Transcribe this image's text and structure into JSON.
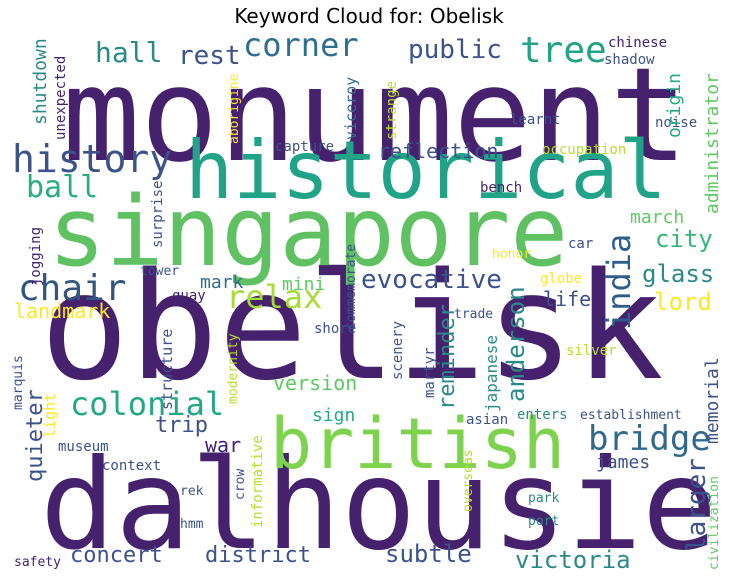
{
  "title": "Keyword Cloud for: Obelisk",
  "words": [
    {
      "text": "obelisk",
      "color": "#45216e"
    },
    {
      "text": "monument",
      "color": "#45216e"
    },
    {
      "text": "singapore",
      "color": "#5fc161"
    },
    {
      "text": "dalhousie",
      "color": "#45216e"
    },
    {
      "text": "historical",
      "color": "#20a386"
    },
    {
      "text": "british",
      "color": "#7ed34e"
    },
    {
      "text": "history",
      "color": "#3b528b"
    },
    {
      "text": "corner",
      "color": "#2e6e8e"
    },
    {
      "text": "tree",
      "color": "#20a386"
    },
    {
      "text": "hall",
      "color": "#2a8a8a"
    },
    {
      "text": "rest",
      "color": "#3b528b"
    },
    {
      "text": "public",
      "color": "#3b528b"
    },
    {
      "text": "ball",
      "color": "#28ae80"
    },
    {
      "text": "chair",
      "color": "#33567f"
    },
    {
      "text": "relax",
      "color": "#a8db34"
    },
    {
      "text": "evocative",
      "color": "#3b528b"
    },
    {
      "text": "india",
      "color": "#2f5d8a"
    },
    {
      "text": "colonial",
      "color": "#22a884"
    },
    {
      "text": "bridge",
      "color": "#31688e"
    },
    {
      "text": "victoria",
      "color": "#2a8a8a"
    },
    {
      "text": "concert",
      "color": "#3b528b"
    },
    {
      "text": "district",
      "color": "#3b528b"
    },
    {
      "text": "subtle",
      "color": "#3b528b"
    },
    {
      "text": "larger",
      "color": "#3b528b"
    },
    {
      "text": "anderson",
      "color": "#2a8a8a"
    },
    {
      "text": "reminder",
      "color": "#2a8a8a"
    },
    {
      "text": "quieter",
      "color": "#3b528b"
    },
    {
      "text": "landmark",
      "color": "#fde725"
    },
    {
      "text": "glass",
      "color": "#2a8a8a"
    },
    {
      "text": "lord",
      "color": "#fde725"
    },
    {
      "text": "city",
      "color": "#35b779"
    },
    {
      "text": "trip",
      "color": "#3b528b"
    },
    {
      "text": "war",
      "color": "#45216e"
    },
    {
      "text": "version",
      "color": "#5ec962"
    },
    {
      "text": "reflection",
      "color": "#3b528b"
    },
    {
      "text": "memorial",
      "color": "#3b528b"
    },
    {
      "text": "japanese",
      "color": "#2a8a8a"
    },
    {
      "text": "james",
      "color": "#3b528b"
    },
    {
      "text": "life",
      "color": "#3b528b"
    },
    {
      "text": "march",
      "color": "#5ec962"
    },
    {
      "text": "administrator",
      "color": "#5ec962"
    },
    {
      "text": "origin",
      "color": "#22a884"
    },
    {
      "text": "occupation",
      "color": "#b5de2b"
    },
    {
      "text": "shutdown",
      "color": "#2a8a8a"
    },
    {
      "text": "unexpected",
      "color": "#45216e"
    },
    {
      "text": "aborigine",
      "color": "#fde725"
    },
    {
      "text": "viceroy",
      "color": "#2e6e8e"
    },
    {
      "text": "strange",
      "color": "#b5de2b"
    },
    {
      "text": "learnt",
      "color": "#3b528b"
    },
    {
      "text": "capture",
      "color": "#3b528b"
    },
    {
      "text": "chinese",
      "color": "#45216e"
    },
    {
      "text": "shadow",
      "color": "#3b528b"
    },
    {
      "text": "noise",
      "color": "#3b528b"
    },
    {
      "text": "bench",
      "color": "#45216e"
    },
    {
      "text": "surprise",
      "color": "#3b528b"
    },
    {
      "text": "jogging",
      "color": "#45216e"
    },
    {
      "text": "commemorate",
      "color": "#3b528b"
    },
    {
      "text": "honor",
      "color": "#fde725"
    },
    {
      "text": "car",
      "color": "#3b528b"
    },
    {
      "text": "globe",
      "color": "#fde725"
    },
    {
      "text": "tower",
      "color": "#3b528b"
    },
    {
      "text": "mark",
      "color": "#2e6e8e"
    },
    {
      "text": "mini",
      "color": "#5ec962"
    },
    {
      "text": "quay",
      "color": "#45216e"
    },
    {
      "text": "trade",
      "color": "#3b528b"
    },
    {
      "text": "shore",
      "color": "#3b528b"
    },
    {
      "text": "scenery",
      "color": "#3b528b"
    },
    {
      "text": "martyr",
      "color": "#3b528b"
    },
    {
      "text": "silver",
      "color": "#b5de2b"
    },
    {
      "text": "structure",
      "color": "#3b528b"
    },
    {
      "text": "modernity",
      "color": "#b5de2b"
    },
    {
      "text": "marquis",
      "color": "#3b528b"
    },
    {
      "text": "sign",
      "color": "#22a884"
    },
    {
      "text": "light",
      "color": "#fde725"
    },
    {
      "text": "museum",
      "color": "#3b528b"
    },
    {
      "text": "asian",
      "color": "#3b528b"
    },
    {
      "text": "enters",
      "color": "#2a8a8a"
    },
    {
      "text": "establishment",
      "color": "#3b528b"
    },
    {
      "text": "overseas",
      "color": "#b5de2b"
    },
    {
      "text": "context",
      "color": "#3b528b"
    },
    {
      "text": "crow",
      "color": "#3b528b"
    },
    {
      "text": "informative",
      "color": "#b5de2b"
    },
    {
      "text": "rek",
      "color": "#3b528b"
    },
    {
      "text": "park",
      "color": "#2a8a8a"
    },
    {
      "text": "port",
      "color": "#2a8a8a"
    },
    {
      "text": "civilization",
      "color": "#5ec962"
    },
    {
      "text": "hmm",
      "color": "#3b528b"
    },
    {
      "text": "safety",
      "color": "#45216e"
    }
  ]
}
